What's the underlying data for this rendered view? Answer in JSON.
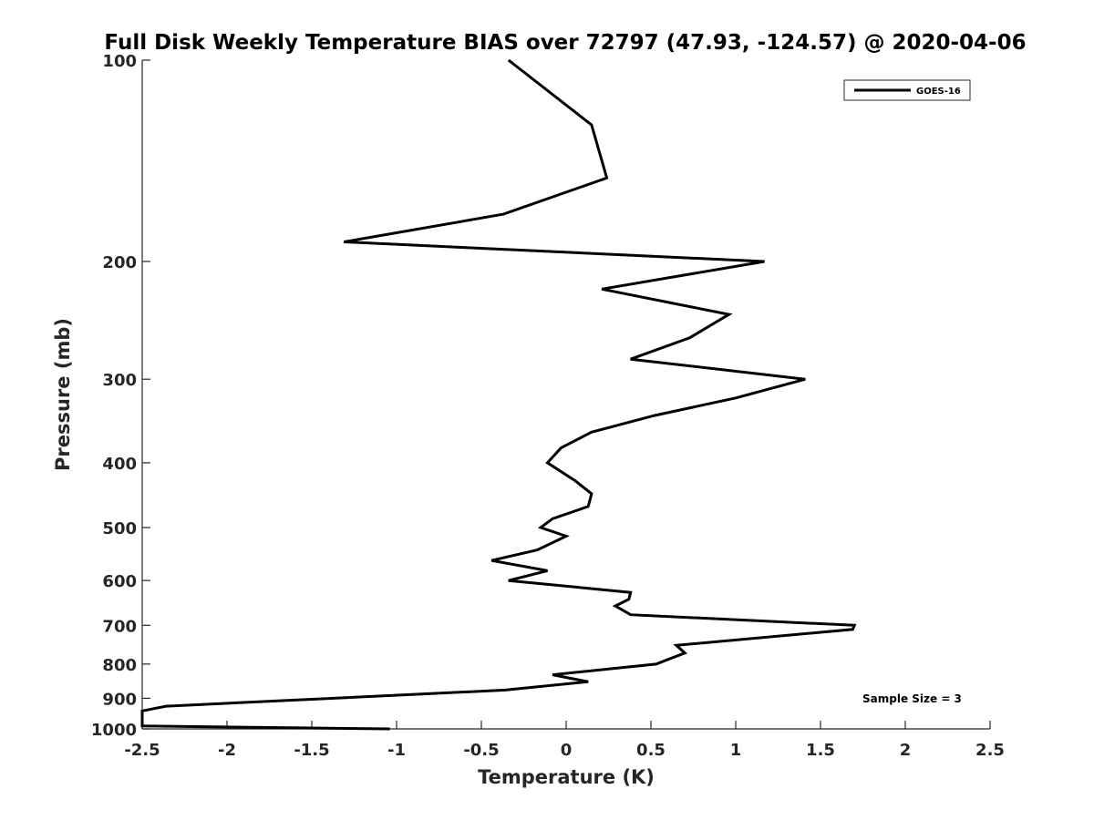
{
  "chart_data": {
    "type": "line",
    "title": "Full Disk Weekly Temperature BIAS over 72797 (47.93, -124.57) @ 2020-04-06",
    "xlabel": "Temperature (K)",
    "ylabel": "Pressure (mb)",
    "xlim": [
      -2.5,
      2.5
    ],
    "ylim": [
      100,
      1000
    ],
    "y_scale": "log",
    "y_reversed": true,
    "grid": false,
    "legend_position": "top-right",
    "x_ticks": [
      "-2.5",
      "-2",
      "-1.5",
      "-1",
      "-0.5",
      "0",
      "0.5",
      "1",
      "1.5",
      "2",
      "2.5"
    ],
    "y_ticks": [
      "100",
      "200",
      "300",
      "400",
      "500",
      "600",
      "700",
      "800",
      "900",
      "1000"
    ],
    "annotation": "Sample Size = 3",
    "series": [
      {
        "name": "GOES-16",
        "color": "#000000",
        "points": [
          {
            "x": -0.34,
            "y": 100
          },
          {
            "x": 0.15,
            "y": 125
          },
          {
            "x": 0.24,
            "y": 150
          },
          {
            "x": -0.37,
            "y": 170
          },
          {
            "x": -1.31,
            "y": 187
          },
          {
            "x": 1.17,
            "y": 200
          },
          {
            "x": 0.21,
            "y": 220
          },
          {
            "x": 0.96,
            "y": 240
          },
          {
            "x": 0.73,
            "y": 260
          },
          {
            "x": 0.38,
            "y": 280
          },
          {
            "x": 1.41,
            "y": 300
          },
          {
            "x": 1.0,
            "y": 320
          },
          {
            "x": 0.52,
            "y": 340
          },
          {
            "x": 0.15,
            "y": 360
          },
          {
            "x": -0.03,
            "y": 380
          },
          {
            "x": -0.11,
            "y": 400
          },
          {
            "x": 0.05,
            "y": 425
          },
          {
            "x": 0.15,
            "y": 445
          },
          {
            "x": 0.13,
            "y": 465
          },
          {
            "x": -0.08,
            "y": 485
          },
          {
            "x": -0.15,
            "y": 500
          },
          {
            "x": 0.0,
            "y": 515
          },
          {
            "x": -0.17,
            "y": 540
          },
          {
            "x": -0.44,
            "y": 560
          },
          {
            "x": -0.11,
            "y": 580
          },
          {
            "x": -0.34,
            "y": 600
          },
          {
            "x": 0.38,
            "y": 625
          },
          {
            "x": 0.37,
            "y": 640
          },
          {
            "x": 0.29,
            "y": 655
          },
          {
            "x": 0.38,
            "y": 675
          },
          {
            "x": 1.7,
            "y": 700
          },
          {
            "x": 1.69,
            "y": 710
          },
          {
            "x": 0.65,
            "y": 750
          },
          {
            "x": 0.7,
            "y": 770
          },
          {
            "x": 0.53,
            "y": 800
          },
          {
            "x": -0.08,
            "y": 830
          },
          {
            "x": 0.13,
            "y": 850
          },
          {
            "x": -0.36,
            "y": 875
          },
          {
            "x": -2.36,
            "y": 925
          },
          {
            "x": -2.5,
            "y": 940
          },
          {
            "x": -2.5,
            "y": 990
          },
          {
            "x": -1.04,
            "y": 1000
          }
        ]
      }
    ]
  }
}
